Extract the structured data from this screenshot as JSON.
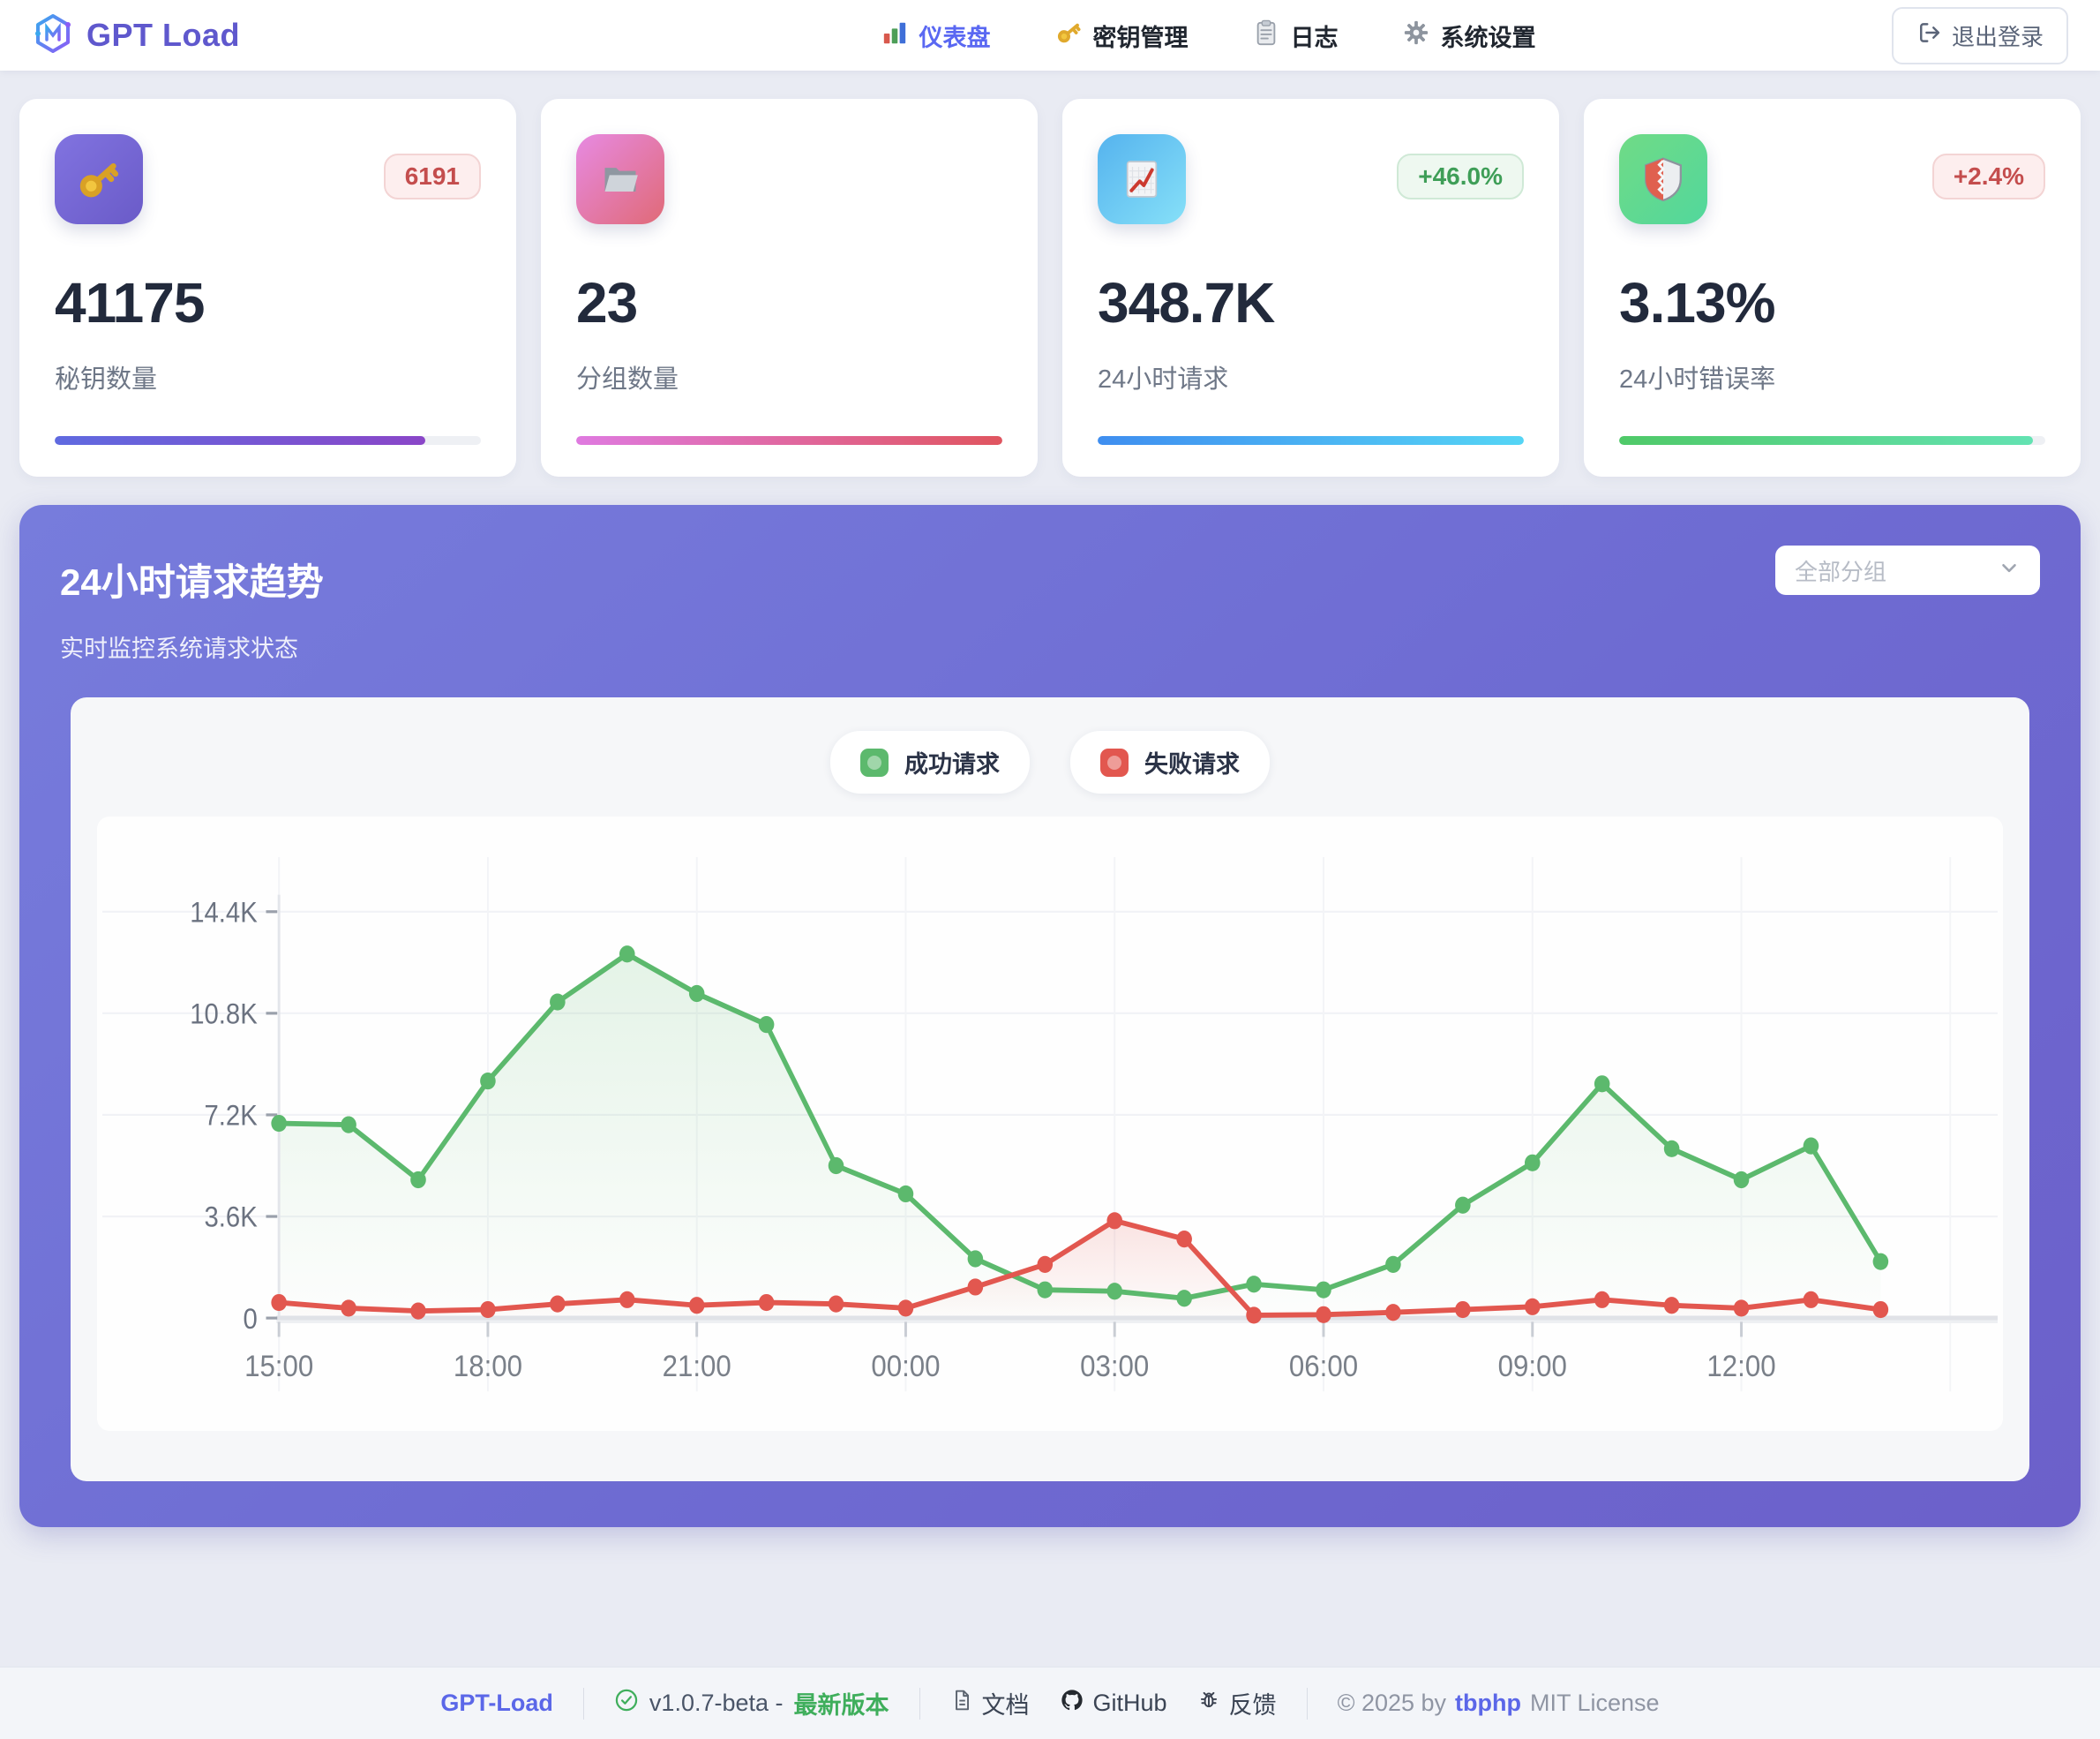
{
  "header": {
    "logo_text": "GPT Load",
    "active_nav": 0,
    "nav": [
      {
        "label": "仪表盘",
        "icon": "bar-chart"
      },
      {
        "label": "密钥管理",
        "icon": "key"
      },
      {
        "label": "日志",
        "icon": "clipboard"
      },
      {
        "label": "系统设置",
        "icon": "gear"
      }
    ],
    "logout_label": "退出登录"
  },
  "stats": [
    {
      "icon": "key",
      "value": "41175",
      "label": "秘钥数量",
      "badge": "6191",
      "badge_style": "red",
      "progress": 87,
      "bar_from": "#5f6ae0",
      "bar_to": "#8a46c8"
    },
    {
      "icon": "folder",
      "value": "23",
      "label": "分组数量",
      "badge": "",
      "badge_style": "",
      "progress": 100,
      "bar_from": "#df7ae0",
      "bar_to": "#e0555f"
    },
    {
      "icon": "chart-up",
      "value": "348.7K",
      "label": "24小时请求",
      "badge": "+46.0%",
      "badge_style": "green",
      "progress": 100,
      "bar_from": "#3f8ef0",
      "bar_to": "#55d5f5"
    },
    {
      "icon": "shield",
      "value": "3.13%",
      "label": "24小时错误率",
      "badge": "+2.4%",
      "badge_style": "red",
      "progress": 97,
      "bar_from": "#4fc968",
      "bar_to": "#63e2b2"
    }
  ],
  "trend": {
    "title": "24小时请求趋势",
    "subtitle": "实时监控系统请求状态",
    "group_filter_placeholder": "全部分组"
  },
  "chart_data": {
    "type": "line",
    "title": "24小时请求趋势",
    "x": [
      "15:00",
      "16:00",
      "17:00",
      "18:00",
      "19:00",
      "20:00",
      "21:00",
      "22:00",
      "23:00",
      "00:00",
      "01:00",
      "02:00",
      "03:00",
      "04:00",
      "05:00",
      "06:00",
      "07:00",
      "08:00",
      "09:00",
      "10:00",
      "11:00",
      "12:00",
      "13:00",
      "14:00"
    ],
    "x_tick_every": 3,
    "x_tick_labels": [
      "15:00",
      "18:00",
      "21:00",
      "00:00",
      "03:00",
      "06:00",
      "09:00",
      "12:00"
    ],
    "series": [
      {
        "name": "成功请求",
        "color": "#5cb96d",
        "values": [
          6900,
          6850,
          4900,
          8400,
          11200,
          12900,
          11500,
          10400,
          5400,
          4400,
          2100,
          1000,
          950,
          700,
          1200,
          1000,
          1900,
          4000,
          5500,
          8300,
          6000,
          4900,
          6100,
          2000
        ]
      },
      {
        "name": "失败请求",
        "color": "#e2574f",
        "values": [
          550,
          350,
          250,
          300,
          500,
          650,
          450,
          550,
          500,
          350,
          1100,
          1900,
          3450,
          2800,
          100,
          120,
          200,
          300,
          400,
          650,
          450,
          350,
          650,
          300
        ]
      }
    ],
    "ylim": [
      0,
      14400
    ],
    "y_ticks": [
      {
        "value": 0,
        "label": "0"
      },
      {
        "value": 3600,
        "label": "3.6K"
      },
      {
        "value": 7200,
        "label": "7.2K"
      },
      {
        "value": 10800,
        "label": "10.8K"
      },
      {
        "value": 14400,
        "label": "14.4K"
      }
    ],
    "grid": true,
    "legend_position": "top"
  },
  "footer": {
    "brand": "GPT-Load",
    "version": "v1.0.7-beta -",
    "latest": "最新版本",
    "links": [
      {
        "label": "文档",
        "icon": "doc"
      },
      {
        "label": "GitHub",
        "icon": "github"
      },
      {
        "label": "反馈",
        "icon": "bug"
      }
    ],
    "copyright": "© 2025 by",
    "author": "tbphp",
    "license": "MIT License"
  }
}
